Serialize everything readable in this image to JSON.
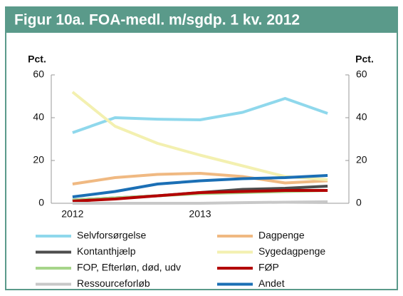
{
  "chart_data": {
    "type": "line",
    "title": "Figur 10a. FOA-medl. m/sgdp. 1 kv. 2012",
    "y_label": "Pct.",
    "y2_label": "Pct.",
    "categories": [
      "2012",
      null,
      null,
      "2013",
      null,
      null,
      null
    ],
    "ylim": [
      0,
      60
    ],
    "yticks": [
      0,
      20,
      40,
      60
    ],
    "y2lim": [
      0,
      60
    ],
    "y2ticks": [
      0,
      20,
      40,
      60
    ],
    "series": [
      {
        "name": "Selvforsørgelse",
        "color": "#8fd8ec",
        "values": [
          33,
          40,
          39.3,
          39,
          42.5,
          49,
          42
        ]
      },
      {
        "name": "Dagpenge",
        "color": "#f0b982",
        "values": [
          9,
          12,
          13.5,
          14,
          12.5,
          9.5,
          10.5
        ]
      },
      {
        "name": "Kontanthjælp",
        "color": "#4d4d4d",
        "values": [
          1.5,
          2.5,
          3.5,
          5,
          6.5,
          7,
          8
        ]
      },
      {
        "name": "Sygedagpenge",
        "color": "#f3f0b0",
        "values": [
          52,
          36,
          28,
          22.5,
          17.5,
          12.5,
          11
        ]
      },
      {
        "name": "FOP, Efterløn, død, udv",
        "color": "#a6d58a",
        "values": [
          1.5,
          2.5,
          3.5,
          4.5,
          5,
          5.5,
          6
        ]
      },
      {
        "name": "FØP",
        "color": "#b30000",
        "values": [
          1,
          2,
          3.5,
          5,
          5.5,
          6,
          6
        ]
      },
      {
        "name": "Ressourceforløb",
        "color": "#c8c8c8",
        "values": [
          0,
          0,
          0,
          0,
          0.3,
          0.5,
          0.7
        ]
      },
      {
        "name": "Andet",
        "color": "#1b6fb5",
        "values": [
          3,
          5.5,
          9,
          10.5,
          11.5,
          12,
          13
        ]
      }
    ]
  }
}
